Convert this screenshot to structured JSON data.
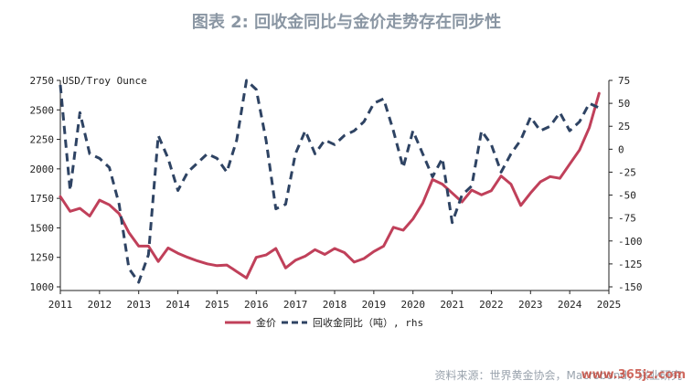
{
  "title": "图表 2:  回收金同比与金价走势存在同步性",
  "source": "资料来源：世界黄金协会，Macrobond，兴业研究",
  "watermark": "www.365jz.com",
  "chart_data": {
    "type": "line",
    "unit_label": "USD/Troy Ounce",
    "x_ticks": [
      "2011",
      "2012",
      "2013",
      "2014",
      "2015",
      "2016",
      "2017",
      "2018",
      "2019",
      "2020",
      "2021",
      "2022",
      "2023",
      "2024",
      "2025"
    ],
    "x_range": [
      2011.0,
      2025.0
    ],
    "y_left": {
      "range": [
        1000,
        2750
      ],
      "ticks": [
        1000,
        1250,
        1500,
        1750,
        2000,
        2250,
        2500,
        2750
      ]
    },
    "y_right": {
      "range": [
        -150,
        75
      ],
      "ticks": [
        -150,
        -125,
        -100,
        -75,
        -50,
        -25,
        0,
        25,
        50,
        75
      ]
    },
    "series": [
      {
        "name": "金价",
        "axis": "left",
        "color": "#c0405a",
        "style": "solid",
        "x": [
          2011.0,
          2011.25,
          2011.5,
          2011.75,
          2012.0,
          2012.25,
          2012.5,
          2012.75,
          2013.0,
          2013.25,
          2013.5,
          2013.75,
          2014.0,
          2014.25,
          2014.5,
          2014.75,
          2015.0,
          2015.25,
          2015.5,
          2015.75,
          2016.0,
          2016.25,
          2016.5,
          2016.75,
          2017.0,
          2017.25,
          2017.5,
          2017.75,
          2018.0,
          2018.25,
          2018.5,
          2018.75,
          2019.0,
          2019.25,
          2019.5,
          2019.75,
          2020.0,
          2020.25,
          2020.5,
          2020.75,
          2021.0,
          2021.25,
          2021.5,
          2021.75,
          2022.0,
          2022.25,
          2022.5,
          2022.75,
          2023.0,
          2023.25,
          2023.5,
          2023.75,
          2024.0,
          2024.25,
          2024.5,
          2024.75
        ],
        "values": [
          1765,
          1640,
          1665,
          1600,
          1735,
          1695,
          1620,
          1460,
          1345,
          1345,
          1215,
          1330,
          1285,
          1250,
          1220,
          1195,
          1180,
          1185,
          1130,
          1075,
          1250,
          1270,
          1325,
          1160,
          1225,
          1260,
          1315,
          1275,
          1325,
          1290,
          1210,
          1240,
          1300,
          1345,
          1505,
          1480,
          1575,
          1710,
          1910,
          1870,
          1795,
          1720,
          1820,
          1780,
          1815,
          1940,
          1870,
          1690,
          1795,
          1890,
          1935,
          1920,
          2040,
          2160,
          2350,
          2640
        ]
      },
      {
        "name": "回收金同比（吨）, rhs",
        "axis": "right",
        "color": "#2e4363",
        "style": "dashed",
        "x": [
          2011.0,
          2011.25,
          2011.5,
          2011.75,
          2012.0,
          2012.25,
          2012.5,
          2012.75,
          2013.0,
          2013.25,
          2013.5,
          2013.75,
          2014.0,
          2014.25,
          2014.5,
          2014.75,
          2015.0,
          2015.25,
          2015.5,
          2015.75,
          2016.0,
          2016.25,
          2016.5,
          2016.75,
          2017.0,
          2017.25,
          2017.5,
          2017.75,
          2018.0,
          2018.25,
          2018.5,
          2018.75,
          2019.0,
          2019.25,
          2019.5,
          2019.75,
          2020.0,
          2020.25,
          2020.5,
          2020.75,
          2021.0,
          2021.25,
          2021.5,
          2021.75,
          2022.0,
          2022.25,
          2022.5,
          2022.75,
          2023.0,
          2023.25,
          2023.5,
          2023.75,
          2024.0,
          2024.25,
          2024.5,
          2024.75
        ],
        "values": [
          70,
          -45,
          40,
          -5,
          -10,
          -20,
          -60,
          -130,
          -145,
          -115,
          15,
          -10,
          -45,
          -25,
          -15,
          -5,
          -10,
          -25,
          10,
          75,
          65,
          10,
          -65,
          -60,
          -5,
          20,
          -5,
          10,
          5,
          15,
          20,
          30,
          50,
          55,
          20,
          -20,
          20,
          -5,
          -30,
          -10,
          -80,
          -50,
          -40,
          20,
          5,
          -25,
          -5,
          10,
          35,
          20,
          25,
          40,
          20,
          30,
          50,
          45
        ]
      }
    ],
    "legend": {
      "position": "bottom-center"
    }
  }
}
